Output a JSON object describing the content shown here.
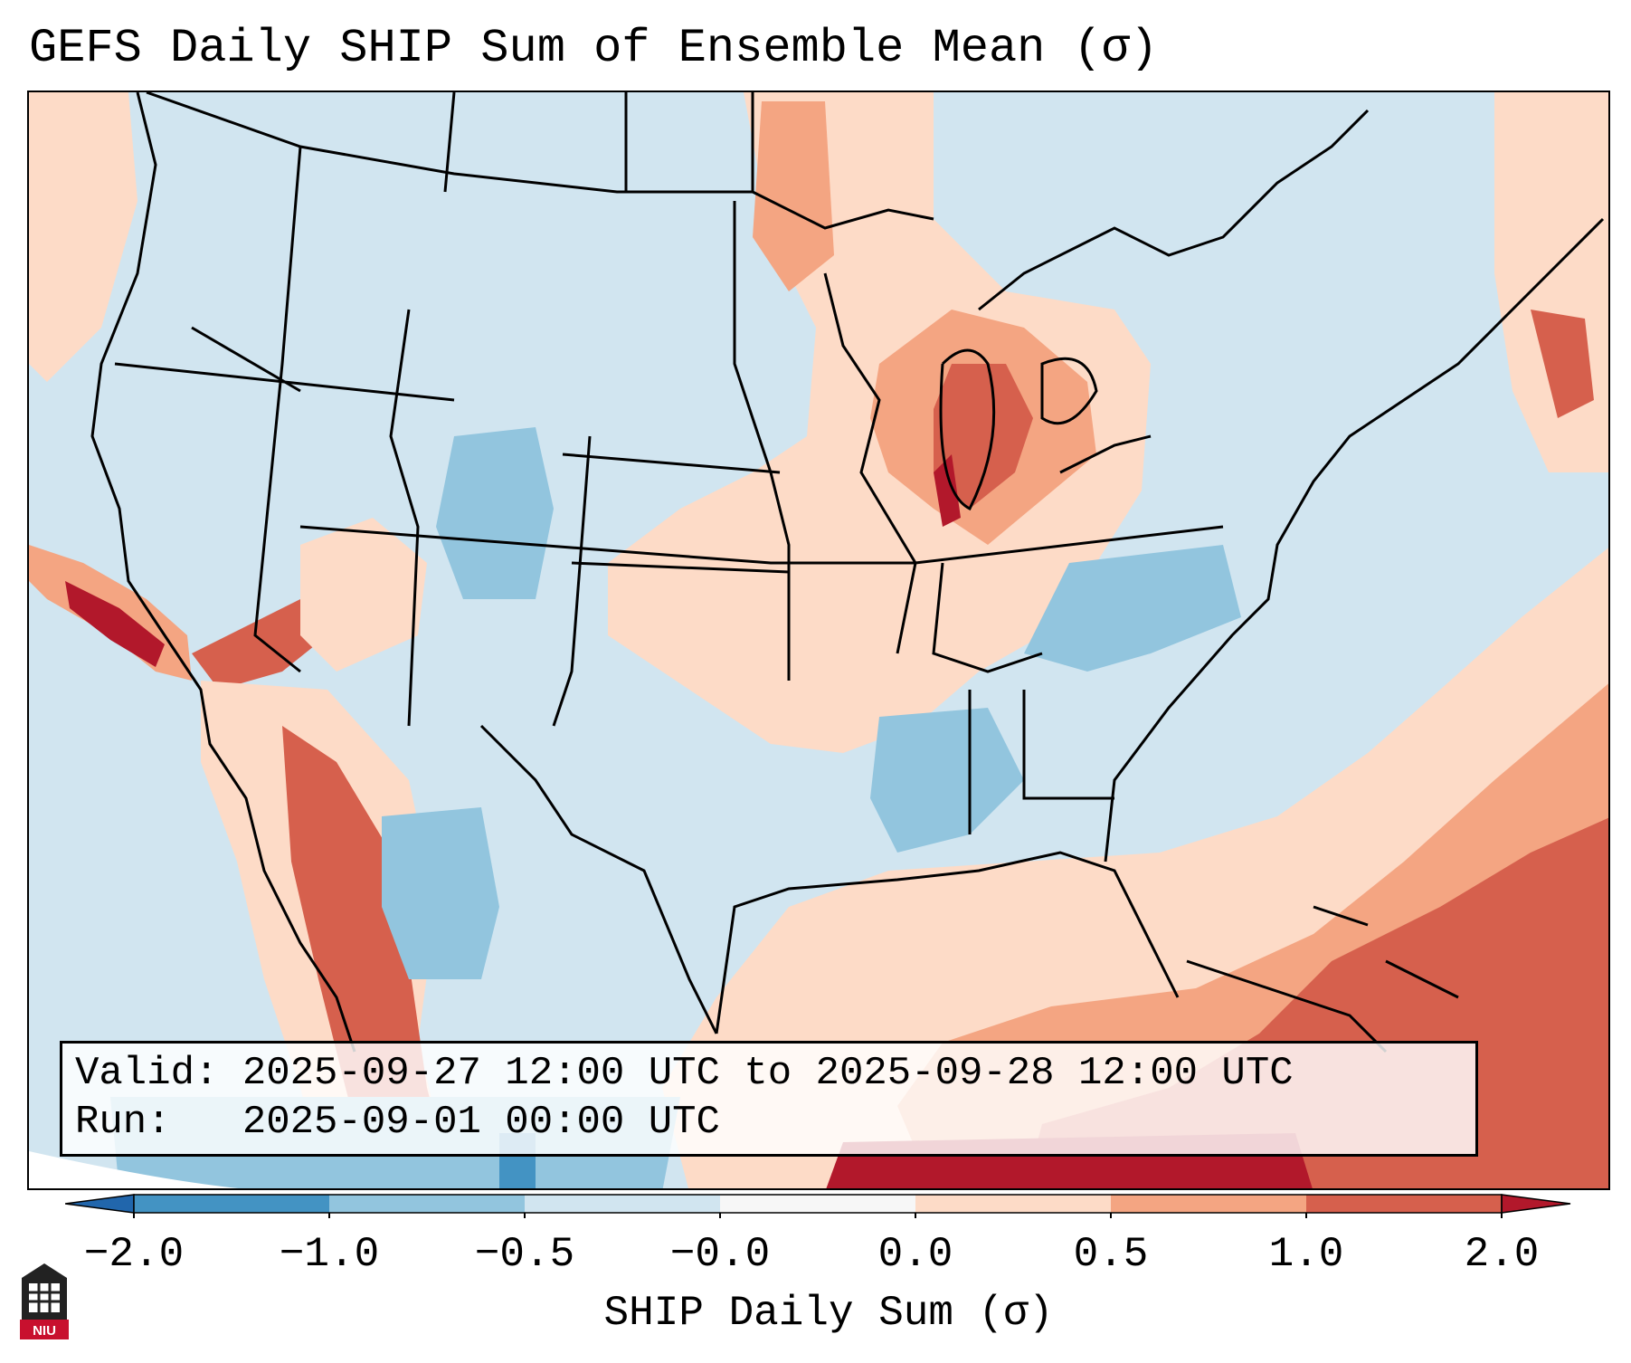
{
  "title": "GEFS Daily SHIP Sum of Ensemble Mean (σ)",
  "info": {
    "valid_label": "Valid:",
    "valid_value": "2025-09-27 12:00 UTC to 2025-09-28 12:00 UTC",
    "run_label": "Run:",
    "run_value": "2025-09-01 00:00 UTC"
  },
  "colorbar": {
    "label": "SHIP Daily Sum (σ)",
    "ticks": [
      "−2.0",
      "−1.0",
      "−0.5",
      "−0.0",
      "0.0",
      "0.5",
      "1.0",
      "2.0"
    ],
    "bin_colors": [
      "#2166ac",
      "#4393c3",
      "#92c5de",
      "#d1e5f0",
      "#f7f7f7",
      "#fddbc7",
      "#f4a582",
      "#d6604d",
      "#b2182b"
    ],
    "extend": "both"
  },
  "map": {
    "projection": "Lambert Conformal (CONUS)",
    "background_bin": "#d1e5f0",
    "anomaly_regions": [
      {
        "region": "Great Lakes / Michigan",
        "bin": "#d6604d"
      },
      {
        "region": "Midwest / Central Plains",
        "bin": "#fddbc7"
      },
      {
        "region": "Southern California coast",
        "bin": "#b2182b"
      },
      {
        "region": "Colorado / Utah",
        "bin": "#92c5de"
      },
      {
        "region": "Southeast US",
        "bin": "#92c5de"
      },
      {
        "region": "Gulf of Mexico / Caribbean",
        "bin": "#d6604d"
      },
      {
        "region": "Western Atlantic",
        "bin": "#f4a582"
      },
      {
        "region": "Baja California / Sierra Madre",
        "bin": "#d6604d"
      },
      {
        "region": "Central Mexico",
        "bin": "#92c5de"
      }
    ]
  },
  "logo": {
    "text": "NIU"
  }
}
